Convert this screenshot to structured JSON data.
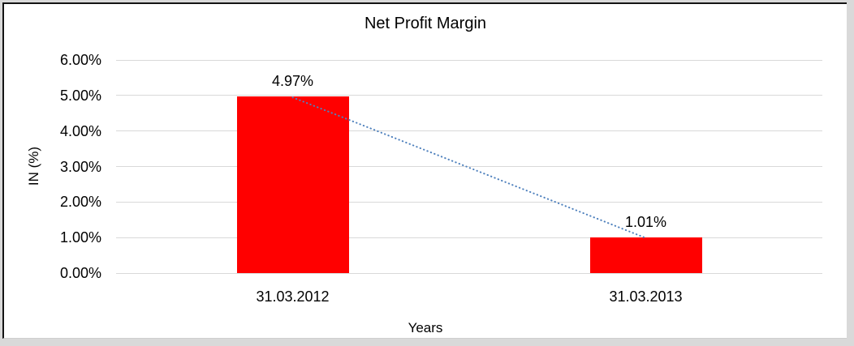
{
  "chart_data": {
    "type": "bar",
    "title": "Net Profit Margin",
    "xlabel": "Years",
    "ylabel": "IN (%)",
    "categories": [
      "31.03.2012",
      "31.03.2013"
    ],
    "values": [
      4.97,
      1.01
    ],
    "data_labels": [
      "4.97%",
      "1.01%"
    ],
    "ylim": [
      0,
      6
    ],
    "yticks": [
      0,
      1,
      2,
      3,
      4,
      5,
      6
    ],
    "ytick_labels": [
      "0.00%",
      "1.00%",
      "2.00%",
      "3.00%",
      "4.00%",
      "5.00%",
      "6.00%"
    ],
    "grid": true,
    "legend": "none",
    "trendline": {
      "style": "dotted",
      "connects": [
        "31.03.2012",
        "31.03.2013"
      ],
      "values": [
        4.97,
        1.01
      ]
    },
    "colors": {
      "bar": "#FF0000",
      "trendline": "#4F81BD",
      "gridline": "#D9D9D9",
      "text": "#000000",
      "frame_border": "#141414",
      "page_background": "#D9D9D9",
      "plot_background": "#FFFFFF"
    }
  }
}
